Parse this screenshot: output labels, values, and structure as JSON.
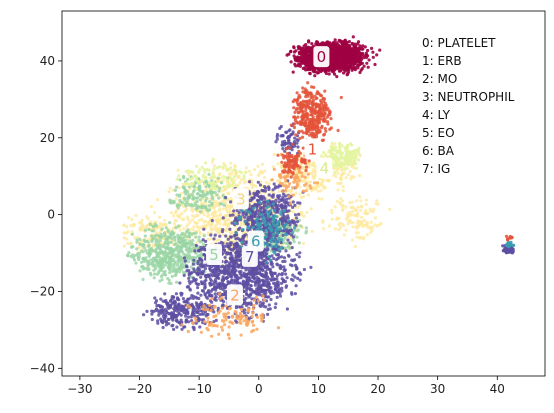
{
  "chart_data": {
    "type": "scatter",
    "title": "",
    "xlabel": "",
    "ylabel": "",
    "xlim": [
      -33,
      48
    ],
    "ylim": [
      -42,
      53
    ],
    "x_ticks": [
      -30,
      -20,
      -10,
      0,
      10,
      20,
      30,
      40
    ],
    "y_ticks": [
      -40,
      -20,
      0,
      20,
      40
    ],
    "grid": false,
    "legend_placement": "top-right",
    "legend": [
      {
        "id": "0",
        "label": "0: PLATELET",
        "color": "#9e0142"
      },
      {
        "id": "1",
        "label": "1: ERB",
        "color": "#e4533a"
      },
      {
        "id": "2",
        "label": "2: MO",
        "color": "#fca55d"
      },
      {
        "id": "3",
        "label": "3: NEUTROPHIL",
        "color": "#fee899"
      },
      {
        "id": "4",
        "label": "4: LY",
        "color": "#e3f4a0"
      },
      {
        "id": "5",
        "label": "5: EO",
        "color": "#98d5a4"
      },
      {
        "id": "6",
        "label": "6: BA",
        "color": "#3a9cb0"
      },
      {
        "id": "7",
        "label": "7: IG",
        "color": "#5e4fa2"
      }
    ],
    "cluster_labels": [
      {
        "text": "0",
        "x": 10.5,
        "y": 41,
        "color": "#9e0142"
      },
      {
        "text": "1",
        "x": 9,
        "y": 17,
        "color": "#e4533a"
      },
      {
        "text": "2",
        "x": -4,
        "y": -21,
        "color": "#fca55d"
      },
      {
        "text": "3",
        "x": -3,
        "y": 4,
        "color": "#f5d77a"
      },
      {
        "text": "4",
        "x": 11,
        "y": 12,
        "color": "#d8ec8c"
      },
      {
        "text": "5",
        "x": -7.5,
        "y": -10.5,
        "color": "#98d5a4"
      },
      {
        "text": "6",
        "x": -0.5,
        "y": -7,
        "color": "#3a9cb0"
      },
      {
        "text": "7",
        "x": -1.5,
        "y": -11,
        "color": "#5e4fa2"
      }
    ],
    "series": [
      {
        "id": "3",
        "color": "#fee899",
        "clusters": [
          {
            "cx": -4,
            "cy": 0,
            "rx": 14,
            "ry": 16,
            "n": 850,
            "alpha": 0.75
          },
          {
            "cx": 10,
            "cy": 12,
            "rx": 8,
            "ry": 8,
            "n": 240,
            "alpha": 0.75
          },
          {
            "cx": -18,
            "cy": -5,
            "rx": 6,
            "ry": 6,
            "n": 120,
            "alpha": 0.75
          },
          {
            "cx": 16,
            "cy": 0,
            "rx": 6,
            "ry": 8,
            "n": 120,
            "alpha": 0.75
          }
        ]
      },
      {
        "id": "5",
        "color": "#98d5a4",
        "clusters": [
          {
            "cx": -15,
            "cy": -10,
            "rx": 8,
            "ry": 9,
            "n": 480,
            "alpha": 0.8
          },
          {
            "cx": -10,
            "cy": 5,
            "rx": 6,
            "ry": 6,
            "n": 150,
            "alpha": 0.8
          },
          {
            "cx": 3,
            "cy": -5,
            "rx": 6,
            "ry": 6,
            "n": 150,
            "alpha": 0.8
          }
        ]
      },
      {
        "id": "4",
        "color": "#e3f4a0",
        "clusters": [
          {
            "cx": 14,
            "cy": 15,
            "rx": 4,
            "ry": 4,
            "n": 160,
            "alpha": 0.85
          },
          {
            "cx": -8,
            "cy": 10,
            "rx": 7,
            "ry": 5,
            "n": 80,
            "alpha": 0.85
          }
        ]
      },
      {
        "id": "7",
        "color": "#5e4fa2",
        "clusters": [
          {
            "cx": -3,
            "cy": -15,
            "rx": 11,
            "ry": 14,
            "n": 1150,
            "alpha": 0.85
          },
          {
            "cx": 1,
            "cy": 0,
            "rx": 7,
            "ry": 10,
            "n": 420,
            "alpha": 0.85
          },
          {
            "cx": -13,
            "cy": -25,
            "rx": 6,
            "ry": 6,
            "n": 250,
            "alpha": 0.85
          },
          {
            "cx": 5,
            "cy": 20,
            "rx": 3,
            "ry": 5,
            "n": 60,
            "alpha": 0.85
          },
          {
            "cx": 42,
            "cy": -9,
            "rx": 1.2,
            "ry": 1.2,
            "n": 90,
            "alpha": 0.9
          }
        ]
      },
      {
        "id": "6",
        "color": "#3a9cb0",
        "clusters": [
          {
            "cx": 1,
            "cy": -4,
            "rx": 6,
            "ry": 9,
            "n": 130,
            "alpha": 0.85
          },
          {
            "cx": 42,
            "cy": -8,
            "rx": 1,
            "ry": 1,
            "n": 20,
            "alpha": 0.9
          }
        ]
      },
      {
        "id": "2",
        "color": "#fca55d",
        "clusters": [
          {
            "cx": -5,
            "cy": -26,
            "rx": 9,
            "ry": 7,
            "n": 120,
            "alpha": 0.85
          },
          {
            "cx": 6,
            "cy": 10,
            "rx": 5,
            "ry": 6,
            "n": 70,
            "alpha": 0.85
          }
        ]
      },
      {
        "id": "1",
        "color": "#e4533a",
        "clusters": [
          {
            "cx": 9,
            "cy": 26,
            "rx": 4,
            "ry": 8,
            "n": 340,
            "alpha": 0.85
          },
          {
            "cx": 6,
            "cy": 14,
            "rx": 3,
            "ry": 5,
            "n": 90,
            "alpha": 0.85
          },
          {
            "cx": 42,
            "cy": -6,
            "rx": 0.8,
            "ry": 1,
            "n": 10,
            "alpha": 0.9
          }
        ]
      },
      {
        "id": "0",
        "color": "#9e0142",
        "clusters": [
          {
            "cx": 12,
            "cy": 41,
            "rx": 7.5,
            "ry": 5,
            "n": 1300,
            "alpha": 0.9
          }
        ]
      }
    ]
  }
}
